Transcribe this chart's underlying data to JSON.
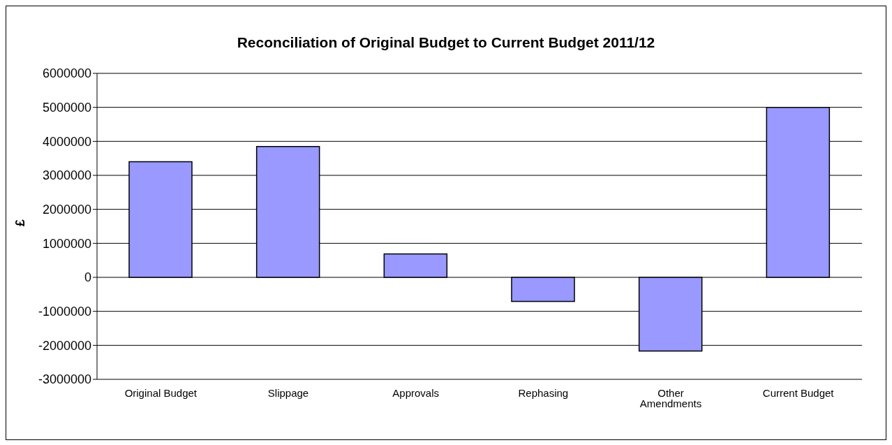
{
  "chart_data": {
    "type": "bar",
    "title": "Reconciliation of Original Budget to Current Budget 2011/12",
    "ylabel": "£",
    "categories": [
      "Original Budget",
      "Slippage",
      "Approvals",
      "Rephasing",
      "Other Amendments",
      "Current Budget"
    ],
    "values": [
      3400000,
      3850000,
      690000,
      -710000,
      -2170000,
      5000000
    ],
    "color": "#9999ff",
    "ylim": [
      -3000000,
      6000000
    ],
    "yticks": [
      -3000000,
      -2000000,
      -1000000,
      0,
      1000000,
      2000000,
      3000000,
      4000000,
      5000000,
      6000000
    ],
    "grid": "y"
  }
}
